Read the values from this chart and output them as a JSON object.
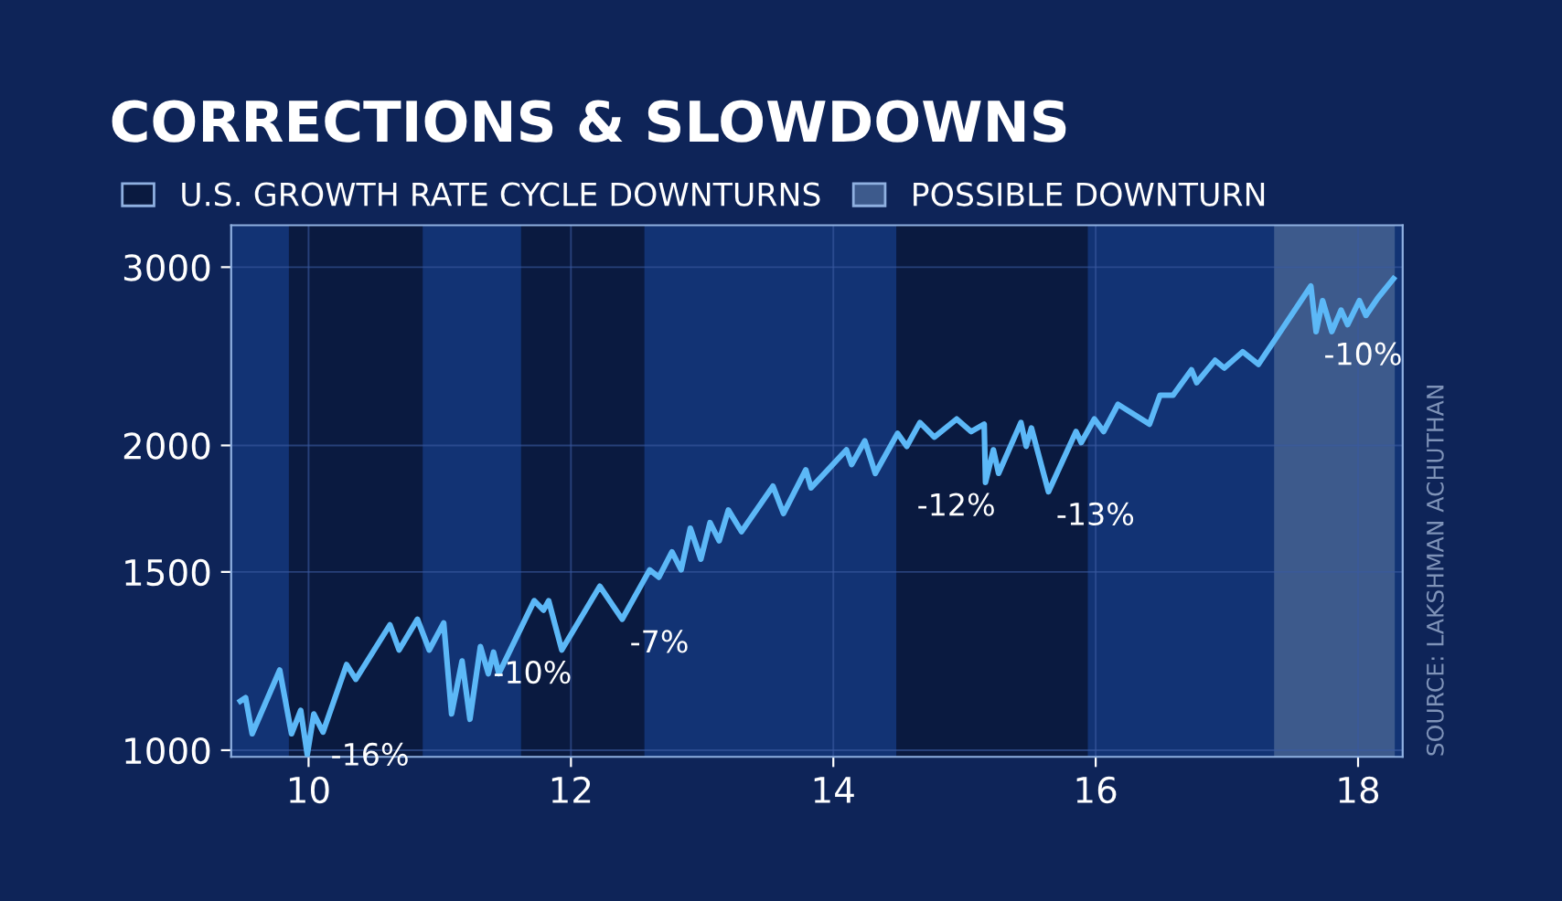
{
  "chart_data": {
    "type": "line",
    "title": "CORRECTIONS & SLOWDOWNS",
    "series": [
      {
        "color": "#5cb8f7",
        "x": [
          9.48,
          9.52,
          9.57,
          9.78,
          9.87,
          9.94,
          9.99,
          10.04,
          10.11,
          10.29,
          10.36,
          10.62,
          10.69,
          10.83,
          10.92,
          11.03,
          11.09,
          11.17,
          11.23,
          11.31,
          11.37,
          11.41,
          11.45,
          11.72,
          11.79,
          11.83,
          11.93,
          12.22,
          12.39,
          12.6,
          12.67,
          12.77,
          12.84,
          12.91,
          12.99,
          13.06,
          13.13,
          13.2,
          13.3,
          13.54,
          13.62,
          13.79,
          13.83,
          14.1,
          14.14,
          14.24,
          14.32,
          14.49,
          14.56,
          14.66,
          14.77,
          14.94,
          15.05,
          15.15,
          15.16,
          15.22,
          15.26,
          15.43,
          15.47,
          15.51,
          15.64,
          15.85,
          15.89,
          15.99,
          16.06,
          16.17,
          16.41,
          16.49,
          16.59,
          16.73,
          16.77,
          16.91,
          16.98,
          17.12,
          17.24,
          17.38,
          17.64,
          17.68,
          17.73,
          17.8,
          17.87,
          17.92,
          18.01,
          18.06,
          18.15,
          18.27
        ],
        "values": [
          1118,
          1127,
          1038,
          1200,
          1038,
          1095,
          990,
          1086,
          1042,
          1215,
          1175,
          1330,
          1256,
          1347,
          1256,
          1336,
          1086,
          1225,
          1073,
          1266,
          1190,
          1250,
          1190,
          1405,
          1375,
          1405,
          1256,
          1452,
          1347,
          1507,
          1482,
          1570,
          1507,
          1657,
          1544,
          1678,
          1610,
          1727,
          1644,
          1823,
          1713,
          1892,
          1816,
          1980,
          1915,
          2021,
          1877,
          2056,
          1996,
          2107,
          2038,
          2124,
          2064,
          2099,
          1839,
          1980,
          1877,
          2107,
          1996,
          2081,
          1800,
          2064,
          2013,
          2124,
          2064,
          2196,
          2099,
          2242,
          2242,
          2375,
          2307,
          2427,
          2385,
          2475,
          2405,
          2559,
          2874,
          2591,
          2780,
          2591,
          2721,
          2632,
          2780,
          2688,
          2796,
          2922
        ]
      }
    ],
    "log": true,
    "xlim": [
      9.41,
      18.34
    ],
    "ylim": [
      985,
      3300
    ],
    "xticks": [
      10,
      12,
      14,
      16,
      18
    ],
    "yticks": [
      1000,
      1500,
      2000,
      3000
    ],
    "grid": true,
    "marker": "none",
    "line_style": "solid",
    "bands": [
      {
        "axis": "x",
        "from": 9.85,
        "to": 10.87,
        "label": "U.S. GROWTH RATE CYCLE DOWNTURNS",
        "color": "#0a1a40"
      },
      {
        "axis": "x",
        "from": 11.62,
        "to": 12.56,
        "color": "#0a1a40"
      },
      {
        "axis": "x",
        "from": 14.48,
        "to": 15.94,
        "color": "#0a1a40"
      },
      {
        "axis": "x",
        "from": 17.36,
        "to": 18.28,
        "label": "POSSIBLE DOWNTURN",
        "color": "#3d5a8c"
      }
    ],
    "legend": "top",
    "annotations": [
      {
        "text": "-16%",
        "x": 10.11,
        "y": 1042
      },
      {
        "text": "-10%",
        "x": 11.93,
        "y": 1256
      },
      {
        "text": "-7%",
        "x": 12.39,
        "y": 1347
      },
      {
        "text": "-12%",
        "x": 15.16,
        "y": 1839
      },
      {
        "text": "-13%",
        "x": 15.64,
        "y": 1800
      },
      {
        "text": "-10%",
        "x": 17.68,
        "y": 2591
      },
      "SOURCE: LAKSHMAN ACHUTHAN"
    ]
  }
}
